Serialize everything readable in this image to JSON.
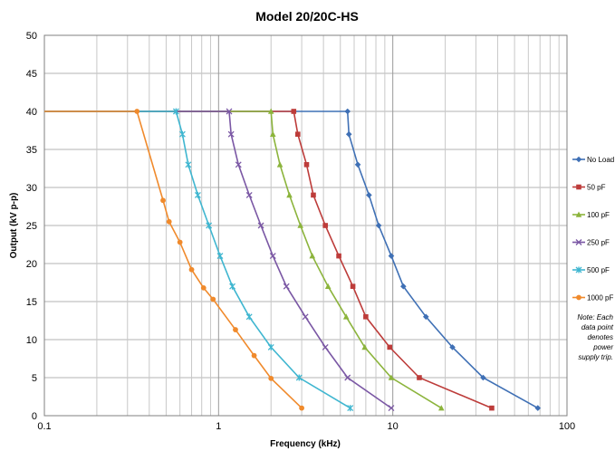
{
  "chart_data": {
    "type": "line",
    "title": "Model  20/20C-HS",
    "xlabel": "Frequency (kHz)",
    "ylabel": "Output (kV p-p)",
    "xscale": "log",
    "xlim": [
      0.1,
      100
    ],
    "ylim": [
      0,
      50
    ],
    "xticks": [
      0.1,
      1,
      10,
      100
    ],
    "xtick_labels": [
      "0.1",
      "1",
      "10",
      "100"
    ],
    "yticks": [
      0,
      5,
      10,
      15,
      20,
      25,
      30,
      35,
      40,
      45,
      50
    ],
    "ytick_labels": [
      "0",
      "5",
      "10",
      "15",
      "20",
      "25",
      "30",
      "35",
      "40",
      "45",
      "50"
    ],
    "grid": true,
    "legend_position": "right",
    "note": [
      "Note: Each",
      "data point",
      "denotes",
      "power",
      "supply trip."
    ],
    "series": [
      {
        "name": "No Load",
        "color": "#3f70b5",
        "marker": "diamond",
        "x": [
          0.1,
          5.5,
          5.6,
          6.3,
          7.3,
          8.3,
          9.8,
          11.5,
          15.5,
          22,
          33,
          68
        ],
        "y": [
          40,
          40,
          37,
          33,
          29,
          25,
          21,
          17,
          13,
          9,
          5,
          1
        ]
      },
      {
        "name": "50 pF",
        "color": "#bd3c3a",
        "marker": "square",
        "x": [
          0.1,
          2.7,
          2.85,
          3.2,
          3.5,
          4.1,
          4.9,
          5.9,
          7.0,
          9.6,
          14.2,
          37
        ],
        "y": [
          40,
          40,
          37,
          33,
          29,
          25,
          21,
          17,
          13,
          9,
          5,
          1
        ]
      },
      {
        "name": "100 pF",
        "color": "#8cb43c",
        "marker": "triangle",
        "x": [
          0.1,
          2.0,
          2.05,
          2.25,
          2.55,
          2.95,
          3.45,
          4.25,
          5.4,
          6.9,
          9.8,
          19
        ],
        "y": [
          40,
          40,
          37,
          33,
          29,
          25,
          21,
          17,
          13,
          9,
          5,
          1
        ]
      },
      {
        "name": "250 pF",
        "color": "#7a57a4",
        "marker": "x",
        "x": [
          0.1,
          1.15,
          1.18,
          1.3,
          1.5,
          1.75,
          2.05,
          2.45,
          3.15,
          4.1,
          5.5,
          9.8
        ],
        "y": [
          40,
          40,
          37,
          33,
          29,
          25,
          21,
          17,
          13,
          9,
          5,
          1
        ]
      },
      {
        "name": "500 pF",
        "color": "#3fb6d0",
        "marker": "star",
        "x": [
          0.1,
          0.57,
          0.62,
          0.67,
          0.76,
          0.88,
          1.02,
          1.2,
          1.5,
          2.0,
          2.9,
          5.7
        ],
        "y": [
          40,
          40,
          37,
          33,
          29,
          25,
          21,
          17,
          13,
          9,
          5,
          1
        ]
      },
      {
        "name": "1000 pF",
        "color": "#f08a2c",
        "marker": "circle",
        "x": [
          0.1,
          0.34,
          0.48,
          0.52,
          0.6,
          0.7,
          0.82,
          0.93,
          1.25,
          1.6,
          2.0,
          3.0
        ],
        "y": [
          40,
          40,
          28.3,
          25.5,
          22.8,
          19.2,
          16.8,
          15.3,
          11.3,
          7.9,
          4.9,
          1
        ]
      }
    ]
  }
}
